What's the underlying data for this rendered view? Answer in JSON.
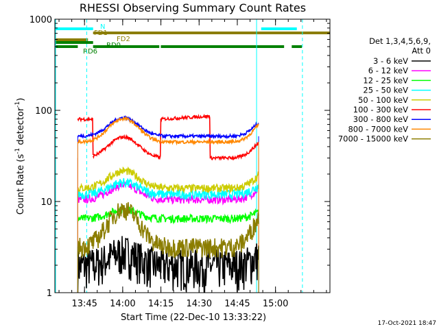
{
  "chart_data": {
    "type": "line",
    "title": "RHESSI Observing Summary Count Rates",
    "xlabel": "Start Time (22-Dec-10 13:33:22)",
    "ylabel_parts": [
      "Count Rate (s",
      "-1",
      " detector",
      "-1",
      ")"
    ],
    "y_scale": "log",
    "ylim": [
      1,
      1000
    ],
    "y_ticks": [
      {
        "value": 1,
        "label": "1"
      },
      {
        "value": 10,
        "label": "10"
      },
      {
        "value": 100,
        "label": "100"
      },
      {
        "value": 1000,
        "label": "1000"
      }
    ],
    "xlim_minutes": [
      0,
      108
    ],
    "x_ticks": [
      {
        "minute": 11.63,
        "label": "13:45"
      },
      {
        "minute": 26.63,
        "label": "14:00"
      },
      {
        "minute": 41.63,
        "label": "14:15"
      },
      {
        "minute": 56.63,
        "label": "14:30"
      },
      {
        "minute": 71.63,
        "label": "14:45"
      },
      {
        "minute": 86.63,
        "label": "15:00"
      }
    ],
    "legend_header": [
      "Det 1,3,4,5,6,9,",
      "Att 0"
    ],
    "series": [
      {
        "name": "3 - 6 keV",
        "color": "#000000",
        "base": 2.0,
        "amp": 0.4,
        "noise": 0.5
      },
      {
        "name": "6 - 12 keV",
        "color": "#ff00ff",
        "base": 10.5,
        "amp": 0.45,
        "noise": 0.1
      },
      {
        "name": "12 - 25 keV",
        "color": "#00ff00",
        "base": 6.5,
        "amp": 0.25,
        "noise": 0.1
      },
      {
        "name": "25 - 50 keV",
        "color": "#00ffff",
        "base": 12.0,
        "amp": 0.35,
        "noise": 0.12
      },
      {
        "name": "50 - 100 keV",
        "color": "#cccc00",
        "base": 14.0,
        "amp": 0.55,
        "noise": 0.1
      },
      {
        "name": "100 - 300 keV",
        "color": "#ff0000",
        "base": 30.0,
        "amp": 0.7,
        "noise": 0.04
      },
      {
        "name": "300 - 800 keV",
        "color": "#0000ff",
        "base": 52.0,
        "amp": 0.6,
        "noise": 0.04
      },
      {
        "name": "800 - 7000 keV",
        "color": "#ff8800",
        "base": 45.0,
        "amp": 0.8,
        "noise": 0.04
      },
      {
        "name": "7000 - 15000 keV",
        "color": "#8b7d00",
        "base": 3.2,
        "amp": 1.6,
        "noise": 0.25
      }
    ],
    "data_segments_minutes": [
      [
        9,
        15
      ],
      [
        15,
        41.6
      ],
      [
        41.6,
        61
      ],
      [
        61,
        80
      ]
    ],
    "flags": [
      {
        "name": "N",
        "color": "#00ffff",
        "intervals": [
          [
            0,
            15
          ],
          [
            81,
            95
          ]
        ]
      },
      {
        "name": "FD1",
        "color": "#8b7d00",
        "intervals": [
          [
            15,
            108
          ]
        ]
      },
      {
        "name": "FD2",
        "color": "#8b7d00",
        "intervals": [
          [
            0,
            13
          ]
        ]
      },
      {
        "name": "RD0",
        "color": "#008000",
        "intervals": [
          [
            0,
            15
          ]
        ]
      },
      {
        "name": "RD6",
        "color": "#008000",
        "intervals": [
          [
            0,
            9
          ],
          [
            15,
            41
          ],
          [
            41.6,
            61
          ],
          [
            61,
            90
          ],
          [
            93,
            97
          ]
        ]
      }
    ],
    "vertical_markers": [
      {
        "minute": 0,
        "color": "#00ffff",
        "style": "solid"
      },
      {
        "minute": 12.5,
        "color": "#00ffff",
        "style": "dashed"
      },
      {
        "minute": 79.2,
        "color": "#00ffff",
        "style": "solid"
      },
      {
        "minute": 97.2,
        "color": "#00ffff",
        "style": "dashed"
      }
    ]
  },
  "footer_timestamp": "17-Oct-2021 18:47"
}
